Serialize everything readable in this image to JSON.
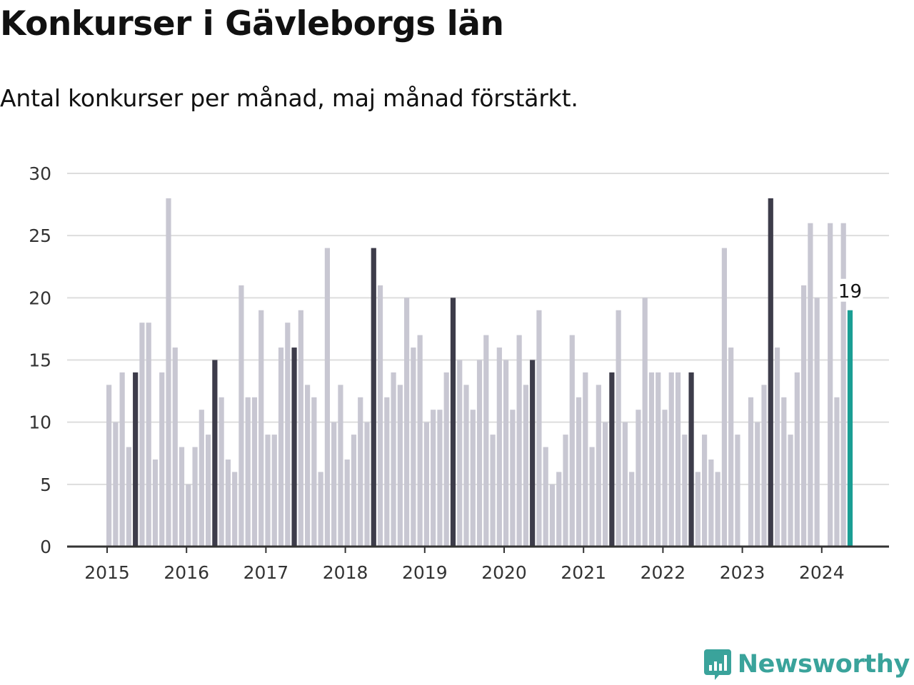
{
  "title": "Konkurser i Gävleborgs län",
  "subtitle": "Antal konkurser per månad, maj månad förstärkt.",
  "brand": {
    "name": "Newsworthy",
    "icon": "newsworthy-logo-icon",
    "color": "#3aa39b"
  },
  "colors": {
    "regular": "#c8c7d2",
    "highlight": "#3d3c4a",
    "latest": "#1a9e94",
    "grid": "#dddddd",
    "axis": "#333333"
  },
  "chart_data": {
    "type": "bar",
    "x_start": "2015-01",
    "x_end": "2024-05",
    "ylim": [
      0,
      30
    ],
    "yticks": [
      0,
      5,
      10,
      15,
      20,
      25,
      30
    ],
    "xticks": [
      "2015",
      "2016",
      "2017",
      "2018",
      "2019",
      "2020",
      "2021",
      "2022",
      "2023",
      "2024"
    ],
    "highlight_month": "maj",
    "latest_label": "19",
    "grid": true,
    "series": [
      {
        "name": "2015",
        "values": [
          13,
          10,
          14,
          8,
          14,
          18,
          18,
          7,
          14,
          28,
          16,
          8
        ]
      },
      {
        "name": "2016",
        "values": [
          5,
          8,
          11,
          9,
          15,
          12,
          7,
          6,
          21,
          12,
          12,
          19
        ]
      },
      {
        "name": "2017",
        "values": [
          9,
          9,
          16,
          18,
          16,
          19,
          13,
          12,
          6,
          24,
          10,
          13
        ]
      },
      {
        "name": "2018",
        "values": [
          7,
          9,
          12,
          10,
          24,
          21,
          12,
          14,
          13,
          20,
          16,
          17
        ]
      },
      {
        "name": "2019",
        "values": [
          10,
          11,
          11,
          14,
          20,
          15,
          13,
          11,
          15,
          17,
          9,
          16
        ]
      },
      {
        "name": "2020",
        "values": [
          15,
          11,
          17,
          13,
          15,
          19,
          8,
          5,
          6,
          9,
          17,
          12
        ]
      },
      {
        "name": "2021",
        "values": [
          14,
          8,
          13,
          10,
          14,
          19,
          10,
          6,
          11,
          20,
          14,
          14
        ]
      },
      {
        "name": "2022",
        "values": [
          11,
          14,
          14,
          9,
          14,
          6,
          9,
          7,
          6,
          24,
          16,
          9
        ]
      },
      {
        "name": "2023",
        "values": [
          0,
          12,
          10,
          13,
          28,
          16,
          12,
          9,
          14,
          21,
          26,
          20
        ]
      },
      {
        "name": "2024",
        "values": [
          0,
          26,
          12,
          26,
          19
        ]
      }
    ]
  }
}
